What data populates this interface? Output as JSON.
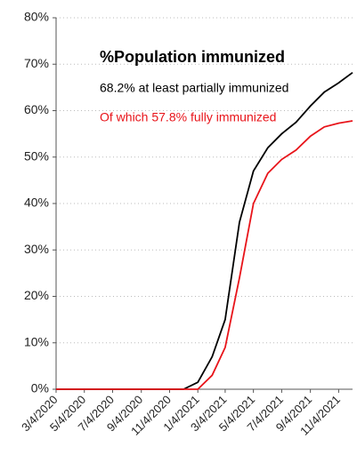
{
  "chart_data": {
    "type": "line",
    "title": "%Population immunized",
    "x": [
      "3/4/2020",
      "4/4/2020",
      "5/4/2020",
      "6/4/2020",
      "7/4/2020",
      "8/4/2020",
      "9/4/2020",
      "10/4/2020",
      "11/4/2020",
      "12/4/2020",
      "1/4/2021",
      "2/4/2021",
      "3/4/2021",
      "4/4/2021",
      "5/4/2021",
      "6/4/2021",
      "7/4/2021",
      "8/4/2021",
      "9/4/2021",
      "10/4/2021",
      "11/4/2021",
      "12/4/2021"
    ],
    "series": [
      {
        "name": "68.2% at least partially immunized",
        "color": "#000000",
        "values": [
          0,
          0,
          0,
          0,
          0,
          0,
          0,
          0,
          0,
          0,
          1.5,
          7,
          15,
          36,
          47,
          52,
          55,
          57.5,
          61,
          64,
          66,
          68.2
        ]
      },
      {
        "name": "Of which 57.8% fully immunized",
        "color": "#e8141a",
        "values": [
          0,
          0,
          0,
          0,
          0,
          0,
          0,
          0,
          0,
          0,
          0,
          3,
          9,
          24,
          40,
          46.5,
          49.5,
          51.5,
          54.5,
          56.5,
          57.3,
          57.8
        ]
      }
    ],
    "xlim": [
      "3/4/2020",
      "12/4/2021"
    ],
    "xticks": [
      "3/4/2020",
      "5/4/2020",
      "7/4/2020",
      "9/4/2020",
      "11/4/2020",
      "1/4/2021",
      "3/4/2021",
      "5/4/2021",
      "7/4/2021",
      "9/4/2021",
      "11/4/2021"
    ],
    "ylim": [
      0,
      80
    ],
    "yticks": [
      {
        "value": 0,
        "label": "0%"
      },
      {
        "value": 10,
        "label": "10%"
      },
      {
        "value": 20,
        "label": "20%"
      },
      {
        "value": 30,
        "label": "30%"
      },
      {
        "value": 40,
        "label": "40%"
      },
      {
        "value": 50,
        "label": "50%"
      },
      {
        "value": 60,
        "label": "60%"
      },
      {
        "value": 70,
        "label": "70%"
      },
      {
        "value": 80,
        "label": "80%"
      }
    ],
    "grid": true
  }
}
